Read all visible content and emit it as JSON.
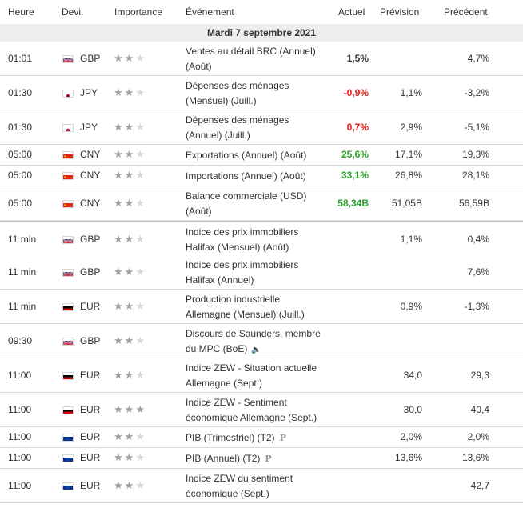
{
  "header": {
    "time": "Heure",
    "currency": "Devi.",
    "importance": "Importance",
    "event": "Événement",
    "actual": "Actuel",
    "forecast": "Prévision",
    "previous": "Précédent"
  },
  "day_label": "Mardi 7 septembre 2021",
  "colors": {
    "positive": "#2aa12a",
    "negative": "#e0201b",
    "star_on": "#9f9f9f",
    "star_off": "#d9d9d9"
  },
  "events": [
    {
      "time": "01:01",
      "flag": "flag-uk",
      "currency": "GBP",
      "stars": 2,
      "event_line1": "Ventes au détail BRC (Annuel)",
      "event_line2": "(Août)",
      "actual": "1,5%",
      "actual_color": "neutral",
      "forecast": "",
      "previous": "4,7%"
    },
    {
      "time": "01:30",
      "flag": "flag-japan",
      "currency": "JPY",
      "stars": 2,
      "event_line1": "Dépenses des ménages",
      "event_line2": "(Mensuel) (Juill.)",
      "actual": "-0,9%",
      "actual_color": "negative",
      "forecast": "1,1%",
      "previous": "-3,2%"
    },
    {
      "time": "01:30",
      "flag": "flag-japan",
      "currency": "JPY",
      "stars": 2,
      "event_line1": "Dépenses des ménages",
      "event_line2": "(Annuel) (Juill.)",
      "actual": "0,7%",
      "actual_color": "negative",
      "forecast": "2,9%",
      "previous": "-5,1%"
    },
    {
      "time": "05:00",
      "flag": "flag-china",
      "currency": "CNY",
      "stars": 2,
      "event_line1": "Exportations (Annuel) (Août)",
      "event_line2": "",
      "actual": "25,6%",
      "actual_color": "positive",
      "forecast": "17,1%",
      "previous": "19,3%"
    },
    {
      "time": "05:00",
      "flag": "flag-china",
      "currency": "CNY",
      "stars": 2,
      "event_line1": "Importations (Annuel) (Août)",
      "event_line2": "",
      "actual": "33,1%",
      "actual_color": "positive",
      "forecast": "26,8%",
      "previous": "28,1%"
    },
    {
      "time": "05:00",
      "flag": "flag-china",
      "currency": "CNY",
      "stars": 2,
      "event_line1": "Balance commerciale (USD)",
      "event_line2": "(Août)",
      "actual": "58,34B",
      "actual_color": "positive",
      "forecast": "51,05B",
      "previous": "56,59B"
    },
    {
      "time": "11 min",
      "flag": "flag-uk",
      "currency": "GBP",
      "stars": 2,
      "event_line1": "Indice des prix immobiliers",
      "event_line2": "Halifax (Mensuel) (Août)",
      "actual": "",
      "actual_color": "neutral",
      "forecast": "1,1%",
      "previous": "0,4%"
    },
    {
      "time": "11 min",
      "flag": "flag-uk",
      "currency": "GBP",
      "stars": 2,
      "event_line1": "Indice des prix immobiliers",
      "event_line2": "Halifax (Annuel)",
      "actual": "",
      "actual_color": "neutral",
      "forecast": "",
      "previous": "7,6%"
    },
    {
      "time": "11 min",
      "flag": "flag-germany",
      "currency": "EUR",
      "stars": 2,
      "event_line1": "Production industrielle",
      "event_line2": "Allemagne (Mensuel) (Juill.)",
      "actual": "",
      "actual_color": "neutral",
      "forecast": "0,9%",
      "previous": "-1,3%"
    },
    {
      "time": "09:30",
      "flag": "flag-uk",
      "currency": "GBP",
      "stars": 2,
      "event_line1": "Discours de Saunders, membre",
      "event_line2": "du MPC (BoE)",
      "speech": true,
      "actual": "",
      "actual_color": "neutral",
      "forecast": "",
      "previous": ""
    },
    {
      "time": "11:00",
      "flag": "flag-germany",
      "currency": "EUR",
      "stars": 2,
      "event_line1": "Indice ZEW - Situation actuelle",
      "event_line2": "Allemagne (Sept.)",
      "actual": "",
      "actual_color": "neutral",
      "forecast": "34,0",
      "previous": "29,3"
    },
    {
      "time": "11:00",
      "flag": "flag-germany",
      "currency": "EUR",
      "stars": 3,
      "event_line1": "Indice ZEW - Sentiment",
      "event_line2": "économique Allemagne (Sept.)",
      "actual": "",
      "actual_color": "neutral",
      "forecast": "30,0",
      "previous": "40,4"
    },
    {
      "time": "11:00",
      "flag": "flag-eu",
      "currency": "EUR",
      "stars": 2,
      "event_line1": "PIB (Trimestriel) (T2)",
      "event_line2": "",
      "preliminary": true,
      "actual": "",
      "actual_color": "neutral",
      "forecast": "2,0%",
      "previous": "2,0%"
    },
    {
      "time": "11:00",
      "flag": "flag-eu",
      "currency": "EUR",
      "stars": 2,
      "event_line1": "PIB (Annuel) (T2)",
      "event_line2": "",
      "preliminary": true,
      "actual": "",
      "actual_color": "neutral",
      "forecast": "13,6%",
      "previous": "13,6%"
    },
    {
      "time": "11:00",
      "flag": "flag-eu",
      "currency": "EUR",
      "stars": 2,
      "event_line1": "Indice ZEW du sentiment",
      "event_line2": "économique (Sept.)",
      "actual": "",
      "actual_color": "neutral",
      "forecast": "",
      "previous": "42,7"
    }
  ]
}
